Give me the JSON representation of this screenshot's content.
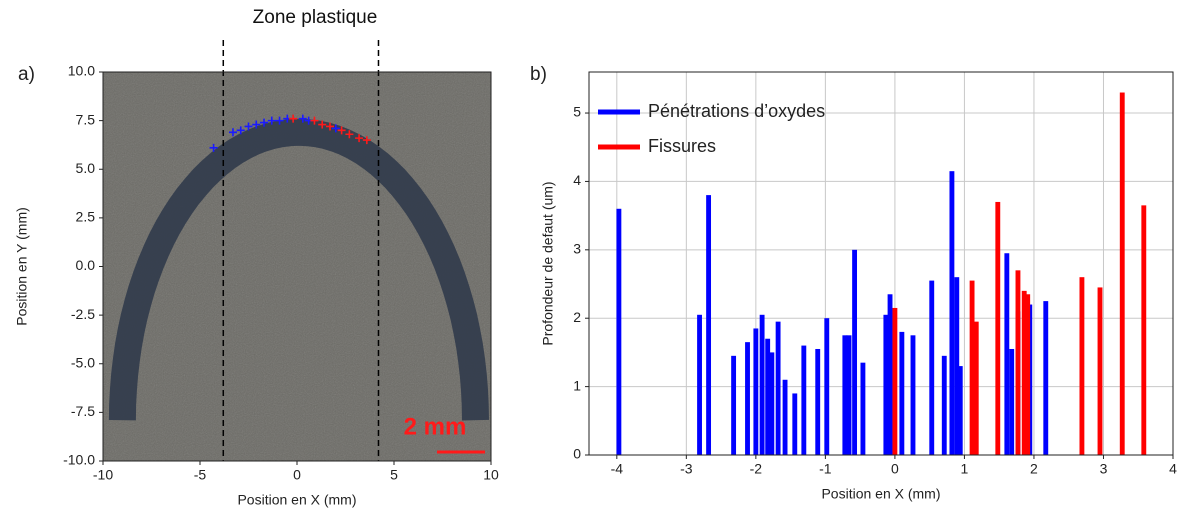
{
  "chart_data": [
    {
      "type": "scatter",
      "panel_label": "a)",
      "annotation": "Zone plastique",
      "scale_label": "2 mm",
      "xlabel": "Position en X (mm)",
      "ylabel": "Position en Y (mm)",
      "xlim": [
        -10,
        10
      ],
      "ylim": [
        -10,
        10
      ],
      "xticks": [
        -10,
        -5,
        0,
        5,
        10
      ],
      "yticks": [
        {
          "value": 10,
          "label": "10.0"
        },
        7.5,
        {
          "value": 5,
          "label": "5.0"
        },
        2.5,
        {
          "value": 0,
          "label": "0.0"
        },
        -2.5,
        {
          "value": -5,
          "label": "-5.0"
        },
        -7.5,
        {
          "value": -10,
          "label": "-10.0"
        }
      ],
      "vlines": [
        -3.8,
        4.2
      ],
      "grid": false,
      "series": [
        {
          "color": "#1a1aff",
          "x": [
            -4.3,
            -3.3,
            -2.9,
            -2.5,
            -2.1,
            -1.7,
            -1.3,
            -0.9,
            -0.5,
            0.3,
            0.6,
            2.0
          ],
          "values": [
            6.1,
            6.9,
            7.0,
            7.2,
            7.3,
            7.4,
            7.5,
            7.5,
            7.6,
            7.6,
            7.5,
            7.1
          ]
        },
        {
          "color": "#ff1a1a",
          "x": [
            -0.2,
            0.9,
            1.3,
            1.7,
            2.3,
            2.7,
            3.2,
            3.6
          ],
          "values": [
            7.6,
            7.5,
            7.3,
            7.2,
            7.0,
            6.8,
            6.6,
            6.5
          ]
        }
      ]
    },
    {
      "type": "bar",
      "panel_label": "b)",
      "xlabel": "Position en X (mm)",
      "ylabel": "Profondeur de defaut (um)",
      "xlim": [
        -4.4,
        4
      ],
      "ylim": [
        0,
        5.6
      ],
      "xticks": [
        -4,
        -3,
        -2,
        -1,
        0,
        1,
        2,
        3,
        4
      ],
      "yticks": [
        0,
        1,
        2,
        3,
        4,
        5
      ],
      "grid": true,
      "legend": "upper-left",
      "bar_width": 0.07,
      "series": [
        {
          "name": "Pénétrations d’oxydes",
          "color": "#0000ff",
          "x": [
            -3.97,
            -2.81,
            -2.68,
            -2.32,
            -2.12,
            -2.0,
            -1.91,
            -1.83,
            -1.77,
            -1.68,
            -1.58,
            -1.44,
            -1.31,
            -1.11,
            -0.98,
            -0.72,
            -0.66,
            -0.58,
            -0.46,
            -0.13,
            -0.07,
            0.1,
            0.26,
            0.53,
            0.71,
            0.82,
            0.89,
            0.94,
            1.61,
            1.68,
            1.77,
            1.94,
            2.17
          ],
          "values": [
            3.6,
            2.05,
            3.8,
            1.45,
            1.65,
            1.85,
            2.05,
            1.7,
            1.5,
            1.95,
            1.1,
            0.9,
            1.6,
            1.55,
            2.0,
            1.75,
            1.75,
            3.0,
            1.35,
            2.05,
            2.35,
            1.8,
            1.75,
            2.55,
            1.45,
            4.15,
            2.6,
            1.3,
            2.95,
            1.55,
            2.1,
            2.2,
            2.25
          ]
        },
        {
          "name": "Fissures",
          "color": "#ff0000",
          "x": [
            0.0,
            1.11,
            1.17,
            1.48,
            1.77,
            1.86,
            1.91,
            2.69,
            2.95,
            3.27,
            3.58
          ],
          "values": [
            2.15,
            2.55,
            1.95,
            3.7,
            2.7,
            2.4,
            2.35,
            2.6,
            2.45,
            5.3,
            3.65
          ]
        }
      ]
    }
  ]
}
